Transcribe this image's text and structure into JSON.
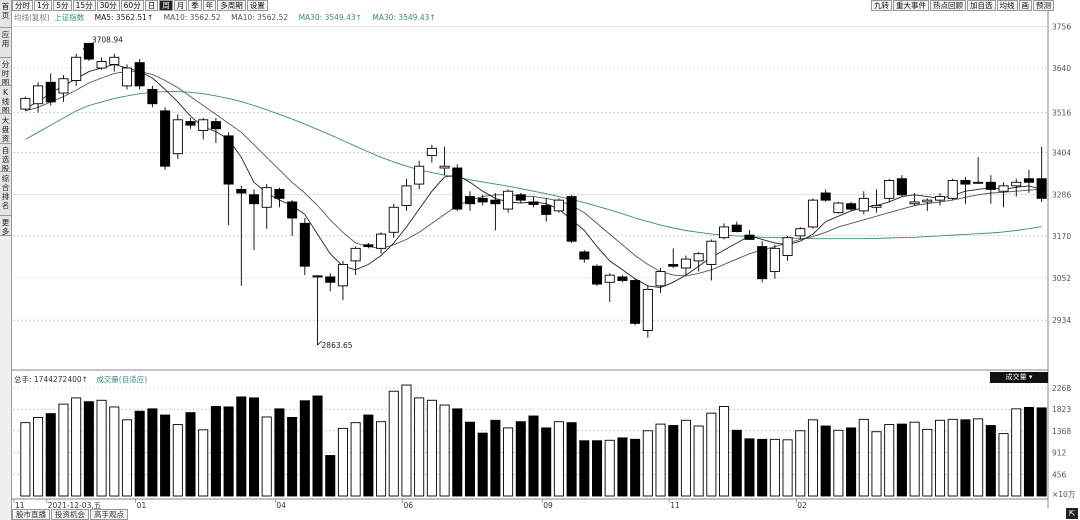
{
  "sidebar": {
    "items": [
      {
        "label": "首页"
      },
      {
        "label": "应用"
      },
      {
        "label": "分时图"
      },
      {
        "label": "K线图"
      },
      {
        "label": "大盘资料"
      },
      {
        "label": "自选股"
      },
      {
        "label": "综合排名"
      },
      {
        "label": "更多"
      }
    ]
  },
  "toolbar": {
    "periods": [
      "分时",
      "1分",
      "5分",
      "15分",
      "30分",
      "60分",
      "日",
      "周",
      "月",
      "季",
      "年",
      "多周期",
      "设置"
    ],
    "active_period": "周",
    "right_buttons": [
      "九转",
      "重大事件",
      "热点回顾",
      "加自选",
      "均线",
      "画",
      "预测"
    ]
  },
  "header": {
    "indicator": "均线(复权)",
    "index_name": "上证指数",
    "ma5": "MA5: 3562.51↑",
    "ma10": "MA10: 3562.52",
    "ma10b": "MA10: 3562.52",
    "ma30": "MA30: 3549.43↑",
    "ma30b": "MA30: 3549.43↑"
  },
  "annotations": {
    "high": "3708.94",
    "low": "2863.65",
    "date_label": "2021-12-03,五"
  },
  "price_axis": [
    "3756",
    "3640",
    "3516",
    "3404",
    "3286",
    "3170",
    "3052",
    "2934"
  ],
  "volume": {
    "header_label": "总手: 1744272400↑",
    "mode": "成交量(自适应)",
    "dropdown_label": "成交量",
    "axis": [
      "2268",
      "1823",
      "1368",
      "912",
      "456",
      "×10万"
    ]
  },
  "time_axis": [
    "11",
    "2021-12-03,五",
    "01",
    "04",
    "06",
    "09",
    "11",
    "02"
  ],
  "bottom_tabs": [
    "股市直播",
    "投资机会",
    "高手观点"
  ],
  "colors": {
    "up_fill": "#ffffff",
    "down_fill": "#000000",
    "ma5": "#222222",
    "ma10": "#555555",
    "ma30": "#3a8a80",
    "grid": "#b0b0c8"
  },
  "chart_data": {
    "type": "candlestick",
    "ylim": [
      2800,
      3780
    ],
    "vol_ylim": [
      0,
      2268
    ],
    "bars": [
      {
        "o": 3525,
        "h": 3560,
        "l": 3520,
        "c": 3555,
        "v": 1540
      },
      {
        "o": 3540,
        "h": 3600,
        "l": 3515,
        "c": 3590,
        "v": 1650
      },
      {
        "o": 3600,
        "h": 3625,
        "l": 3535,
        "c": 3545,
        "v": 1730
      },
      {
        "o": 3570,
        "h": 3620,
        "l": 3545,
        "c": 3610,
        "v": 1930
      },
      {
        "o": 3605,
        "h": 3680,
        "l": 3590,
        "c": 3670,
        "v": 2060
      },
      {
        "o": 3709,
        "h": 3709,
        "l": 3660,
        "c": 3665,
        "v": 1980
      },
      {
        "o": 3640,
        "h": 3670,
        "l": 3635,
        "c": 3658,
        "v": 2010
      },
      {
        "o": 3650,
        "h": 3680,
        "l": 3630,
        "c": 3670,
        "v": 1870
      },
      {
        "o": 3590,
        "h": 3650,
        "l": 3580,
        "c": 3640,
        "v": 1600
      },
      {
        "o": 3655,
        "h": 3665,
        "l": 3580,
        "c": 3590,
        "v": 1780
      },
      {
        "o": 3580,
        "h": 3590,
        "l": 3530,
        "c": 3540,
        "v": 1830
      },
      {
        "o": 3520,
        "h": 3530,
        "l": 3355,
        "c": 3365,
        "v": 1700
      },
      {
        "o": 3400,
        "h": 3510,
        "l": 3385,
        "c": 3495,
        "v": 1500
      },
      {
        "o": 3490,
        "h": 3500,
        "l": 3470,
        "c": 3480,
        "v": 1750
      },
      {
        "o": 3465,
        "h": 3500,
        "l": 3440,
        "c": 3495,
        "v": 1390
      },
      {
        "o": 3490,
        "h": 3500,
        "l": 3430,
        "c": 3470,
        "v": 1880
      },
      {
        "o": 3450,
        "h": 3460,
        "l": 3200,
        "c": 3315,
        "v": 1870
      },
      {
        "o": 3300,
        "h": 3310,
        "l": 3030,
        "c": 3290,
        "v": 2080
      },
      {
        "o": 3285,
        "h": 3300,
        "l": 3130,
        "c": 3260,
        "v": 2060
      },
      {
        "o": 3250,
        "h": 3315,
        "l": 3190,
        "c": 3305,
        "v": 1660
      },
      {
        "o": 3300,
        "h": 3305,
        "l": 3250,
        "c": 3275,
        "v": 1830
      },
      {
        "o": 3265,
        "h": 3270,
        "l": 3170,
        "c": 3220,
        "v": 1650
      },
      {
        "o": 3205,
        "h": 3220,
        "l": 3060,
        "c": 3085,
        "v": 2000
      },
      {
        "o": 3058,
        "h": 3060,
        "l": 2864,
        "c": 3055,
        "v": 2100
      },
      {
        "o": 3055,
        "h": 3065,
        "l": 3015,
        "c": 3040,
        "v": 850
      },
      {
        "o": 3030,
        "h": 3100,
        "l": 2990,
        "c": 3090,
        "v": 1420
      },
      {
        "o": 3100,
        "h": 3140,
        "l": 3060,
        "c": 3135,
        "v": 1540
      },
      {
        "o": 3145,
        "h": 3150,
        "l": 3135,
        "c": 3140,
        "v": 1700
      },
      {
        "o": 3135,
        "h": 3180,
        "l": 3120,
        "c": 3175,
        "v": 1560
      },
      {
        "o": 3180,
        "h": 3260,
        "l": 3165,
        "c": 3250,
        "v": 2200
      },
      {
        "o": 3255,
        "h": 3330,
        "l": 3240,
        "c": 3310,
        "v": 2330
      },
      {
        "o": 3315,
        "h": 3380,
        "l": 3300,
        "c": 3365,
        "v": 2060
      },
      {
        "o": 3395,
        "h": 3425,
        "l": 3375,
        "c": 3415,
        "v": 2010
      },
      {
        "o": 3360,
        "h": 3420,
        "l": 3340,
        "c": 3365,
        "v": 1910
      },
      {
        "o": 3360,
        "h": 3370,
        "l": 3240,
        "c": 3245,
        "v": 1830
      },
      {
        "o": 3280,
        "h": 3295,
        "l": 3240,
        "c": 3260,
        "v": 1550
      },
      {
        "o": 3275,
        "h": 3285,
        "l": 3255,
        "c": 3265,
        "v": 1320
      },
      {
        "o": 3270,
        "h": 3290,
        "l": 3185,
        "c": 3260,
        "v": 1590
      },
      {
        "o": 3245,
        "h": 3300,
        "l": 3235,
        "c": 3295,
        "v": 1430
      },
      {
        "o": 3285,
        "h": 3290,
        "l": 3262,
        "c": 3270,
        "v": 1560
      },
      {
        "o": 3265,
        "h": 3280,
        "l": 3250,
        "c": 3258,
        "v": 1680
      },
      {
        "o": 3255,
        "h": 3275,
        "l": 3210,
        "c": 3230,
        "v": 1430
      },
      {
        "o": 3240,
        "h": 3275,
        "l": 3235,
        "c": 3270,
        "v": 1560
      },
      {
        "o": 3280,
        "h": 3285,
        "l": 3150,
        "c": 3155,
        "v": 1540
      },
      {
        "o": 3125,
        "h": 3130,
        "l": 3095,
        "c": 3105,
        "v": 1160
      },
      {
        "o": 3085,
        "h": 3090,
        "l": 3030,
        "c": 3035,
        "v": 1160
      },
      {
        "o": 3040,
        "h": 3065,
        "l": 2985,
        "c": 3060,
        "v": 1170
      },
      {
        "o": 3055,
        "h": 3060,
        "l": 3040,
        "c": 3045,
        "v": 1220
      },
      {
        "o": 3045,
        "h": 3050,
        "l": 2920,
        "c": 2925,
        "v": 1190
      },
      {
        "o": 2905,
        "h": 3030,
        "l": 2885,
        "c": 3020,
        "v": 1370
      },
      {
        "o": 3030,
        "h": 3080,
        "l": 3010,
        "c": 3070,
        "v": 1510
      },
      {
        "o": 3090,
        "h": 3135,
        "l": 3080,
        "c": 3085,
        "v": 1480
      },
      {
        "o": 3080,
        "h": 3115,
        "l": 3060,
        "c": 3105,
        "v": 1590
      },
      {
        "o": 3100,
        "h": 3125,
        "l": 3070,
        "c": 3120,
        "v": 1470
      },
      {
        "o": 3090,
        "h": 3160,
        "l": 3045,
        "c": 3155,
        "v": 1740
      },
      {
        "o": 3165,
        "h": 3205,
        "l": 3160,
        "c": 3195,
        "v": 1880
      },
      {
        "o": 3200,
        "h": 3210,
        "l": 3180,
        "c": 3182,
        "v": 1380
      },
      {
        "o": 3172,
        "h": 3186,
        "l": 3158,
        "c": 3160,
        "v": 1200
      },
      {
        "o": 3140,
        "h": 3155,
        "l": 3040,
        "c": 3050,
        "v": 1190
      },
      {
        "o": 3070,
        "h": 3145,
        "l": 3050,
        "c": 3135,
        "v": 1190
      },
      {
        "o": 3115,
        "h": 3170,
        "l": 3100,
        "c": 3165,
        "v": 1180
      },
      {
        "o": 3170,
        "h": 3195,
        "l": 3160,
        "c": 3190,
        "v": 1370
      },
      {
        "o": 3195,
        "h": 3275,
        "l": 3190,
        "c": 3270,
        "v": 1600
      },
      {
        "o": 3290,
        "h": 3300,
        "l": 3265,
        "c": 3270,
        "v": 1470
      },
      {
        "o": 3235,
        "h": 3265,
        "l": 3232,
        "c": 3262,
        "v": 1380
      },
      {
        "o": 3260,
        "h": 3265,
        "l": 3240,
        "c": 3245,
        "v": 1430
      },
      {
        "o": 3240,
        "h": 3295,
        "l": 3230,
        "c": 3275,
        "v": 1610
      },
      {
        "o": 3250,
        "h": 3300,
        "l": 3235,
        "c": 3255,
        "v": 1350
      },
      {
        "o": 3275,
        "h": 3330,
        "l": 3265,
        "c": 3325,
        "v": 1500
      },
      {
        "o": 3330,
        "h": 3340,
        "l": 3280,
        "c": 3285,
        "v": 1510
      },
      {
        "o": 3260,
        "h": 3290,
        "l": 3255,
        "c": 3265,
        "v": 1550
      },
      {
        "o": 3265,
        "h": 3275,
        "l": 3240,
        "c": 3270,
        "v": 1400
      },
      {
        "o": 3270,
        "h": 3290,
        "l": 3255,
        "c": 3280,
        "v": 1590
      },
      {
        "o": 3275,
        "h": 3330,
        "l": 3270,
        "c": 3325,
        "v": 1610
      },
      {
        "o": 3325,
        "h": 3335,
        "l": 3260,
        "c": 3315,
        "v": 1600
      },
      {
        "o": 3320,
        "h": 3390,
        "l": 3315,
        "c": 3320,
        "v": 1620
      },
      {
        "o": 3320,
        "h": 3340,
        "l": 3260,
        "c": 3300,
        "v": 1480
      },
      {
        "o": 3295,
        "h": 3320,
        "l": 3250,
        "c": 3310,
        "v": 1310
      },
      {
        "o": 3310,
        "h": 3330,
        "l": 3280,
        "c": 3320,
        "v": 1830
      },
      {
        "o": 3330,
        "h": 3355,
        "l": 3290,
        "c": 3320,
        "v": 1860
      },
      {
        "o": 3330,
        "h": 3420,
        "l": 3265,
        "c": 3275,
        "v": 1850
      }
    ],
    "ma5": [
      3528,
      3545,
      3570,
      3590,
      3610,
      3630,
      3640,
      3650,
      3640,
      3630,
      3612,
      3580,
      3545,
      3505,
      3475,
      3462,
      3440,
      3390,
      3320,
      3290,
      3270,
      3255,
      3230,
      3175,
      3120,
      3085,
      3075,
      3090,
      3115,
      3150,
      3195,
      3245,
      3295,
      3335,
      3340,
      3320,
      3295,
      3275,
      3265,
      3262,
      3265,
      3260,
      3245,
      3215,
      3185,
      3140,
      3100,
      3075,
      3050,
      3030,
      3025,
      3040,
      3060,
      3085,
      3110,
      3130,
      3150,
      3170,
      3160,
      3150,
      3145,
      3155,
      3175,
      3210,
      3225,
      3240,
      3250,
      3255,
      3265,
      3280,
      3285,
      3280,
      3275,
      3283,
      3295,
      3300,
      3305,
      3300,
      3306,
      3310,
      3300
    ],
    "ma10": [
      3520,
      3530,
      3545,
      3560,
      3578,
      3598,
      3612,
      3625,
      3630,
      3630,
      3622,
      3605,
      3585,
      3560,
      3535,
      3510,
      3485,
      3460,
      3425,
      3390,
      3355,
      3320,
      3290,
      3255,
      3215,
      3180,
      3150,
      3140,
      3135,
      3145,
      3160,
      3180,
      3205,
      3230,
      3255,
      3270,
      3280,
      3285,
      3285,
      3282,
      3280,
      3275,
      3268,
      3255,
      3235,
      3205,
      3175,
      3145,
      3115,
      3090,
      3070,
      3060,
      3058,
      3065,
      3075,
      3090,
      3105,
      3120,
      3130,
      3140,
      3150,
      3160,
      3168,
      3180,
      3195,
      3205,
      3215,
      3225,
      3235,
      3245,
      3255,
      3260,
      3265,
      3270,
      3278,
      3285,
      3290,
      3292,
      3295,
      3298,
      3300
    ],
    "ma30": [
      3440,
      3460,
      3480,
      3500,
      3520,
      3535,
      3545,
      3555,
      3562,
      3568,
      3572,
      3574,
      3574,
      3572,
      3568,
      3562,
      3555,
      3546,
      3535,
      3523,
      3510,
      3497,
      3483,
      3468,
      3453,
      3437,
      3421,
      3405,
      3390,
      3377,
      3365,
      3355,
      3347,
      3340,
      3333,
      3327,
      3321,
      3315,
      3309,
      3302,
      3295,
      3288,
      3280,
      3272,
      3263,
      3253,
      3243,
      3232,
      3220,
      3210,
      3200,
      3192,
      3185,
      3180,
      3175,
      3172,
      3170,
      3168,
      3166,
      3165,
      3164,
      3163,
      3162,
      3162,
      3162,
      3162,
      3162,
      3163,
      3164,
      3165,
      3166,
      3168,
      3170,
      3172,
      3174,
      3176,
      3178,
      3181,
      3185,
      3190,
      3196
    ]
  }
}
